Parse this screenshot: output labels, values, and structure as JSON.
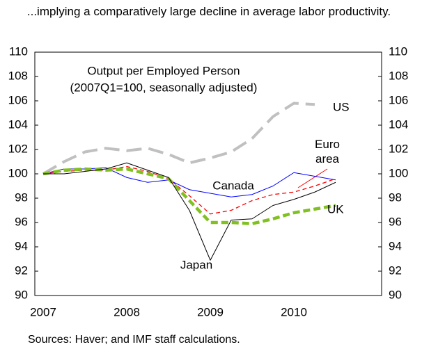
{
  "chart_data": {
    "type": "line",
    "title": "...implying a comparatively large decline in average labor productivity.",
    "annotations": [
      "Output per Employed Person",
      "(2007Q1=100,  seasonally adjusted)"
    ],
    "source": "Sources: Haver; and IMF staff calculations.",
    "categories": [
      "2007",
      null,
      null,
      null,
      "2008",
      null,
      null,
      null,
      "2009",
      null,
      null,
      null,
      "2010",
      null,
      null
    ],
    "series": [
      {
        "name": "US",
        "color": "#c0c0c0",
        "values": [
          100,
          101.0,
          101.8,
          102.1,
          101.9,
          102.1,
          101.6,
          100.9,
          101.3,
          101.8,
          102.9,
          104.7,
          105.8,
          105.7,
          null
        ]
      },
      {
        "name": "Canada",
        "color": "#0000ff",
        "values": [
          100,
          100.4,
          100.4,
          100.5,
          99.7,
          99.3,
          99.5,
          98.7,
          98.4,
          98.1,
          98.3,
          99.0,
          100.1,
          99.8,
          99.5
        ]
      },
      {
        "name": "Euro area",
        "color": "#ff0000",
        "values": [
          100,
          100.2,
          100.3,
          100.3,
          100.6,
          100.2,
          99.6,
          98.2,
          96.7,
          97.0,
          97.8,
          98.3,
          98.5,
          99.0,
          99.6
        ]
      },
      {
        "name": "UK",
        "color": "#80c020",
        "values": [
          100,
          100.3,
          100.4,
          100.3,
          100.4,
          100.0,
          99.6,
          97.8,
          96.0,
          96.0,
          95.9,
          96.3,
          96.8,
          97.1,
          97.4
        ]
      },
      {
        "name": "Japan",
        "color": "#000000",
        "values": [
          100,
          100.0,
          100.2,
          100.4,
          100.9,
          100.3,
          99.7,
          97.0,
          92.9,
          96.2,
          96.3,
          97.4,
          97.9,
          98.5,
          99.3
        ]
      }
    ],
    "ylim": [
      90,
      110
    ],
    "yticks": [
      90,
      92,
      94,
      96,
      98,
      100,
      102,
      104,
      106,
      108,
      110
    ],
    "y2lim": [
      90,
      110
    ],
    "y2ticks": [
      90,
      92,
      94,
      96,
      98,
      100,
      102,
      104,
      106,
      108,
      110
    ]
  }
}
